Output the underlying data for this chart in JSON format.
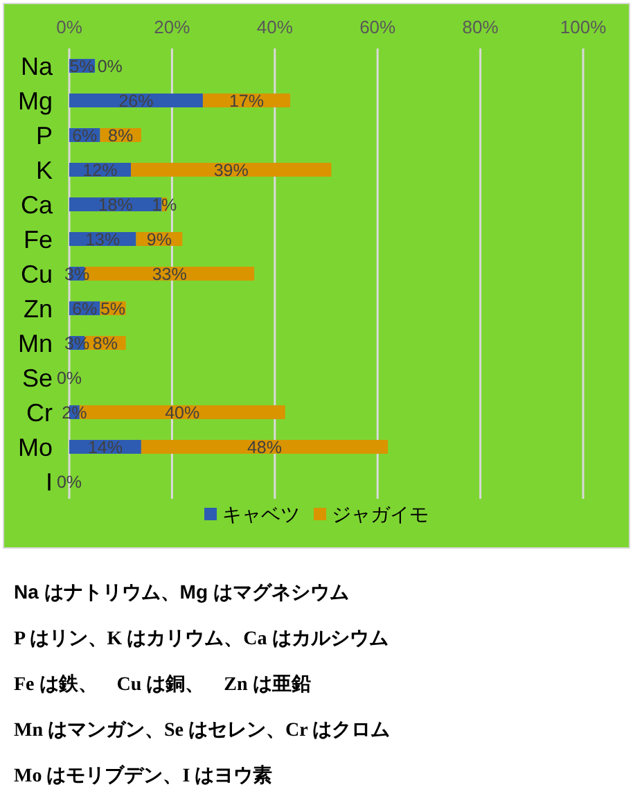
{
  "chart_data": {
    "type": "bar",
    "orientation": "horizontal",
    "stacked": true,
    "categories": [
      "Na",
      "Mg",
      "P",
      "K",
      "Ca",
      "Fe",
      "Cu",
      "Zn",
      "Mn",
      "Se",
      "Cr",
      "Mo",
      "I"
    ],
    "series": [
      {
        "name": "キャベツ",
        "color": "#2e5cb3",
        "values": [
          5,
          26,
          6,
          12,
          18,
          13,
          3,
          6,
          3,
          0,
          2,
          14,
          0
        ],
        "value_labels": [
          "5%",
          "26%",
          "6%",
          "12%",
          "18%",
          "13%",
          "3%",
          "6%",
          "3%",
          "0%",
          "2%",
          "14%",
          "0%"
        ]
      },
      {
        "name": "ジャガイモ",
        "color": "#d99400",
        "values": [
          0,
          17,
          8,
          39,
          1,
          9,
          33,
          5,
          8,
          0,
          40,
          48,
          0
        ],
        "value_labels": [
          "0%",
          "17%",
          "8%",
          "39%",
          "1%",
          "9%",
          "33%",
          "5%",
          "8%",
          null,
          "40%",
          "48%",
          null
        ]
      }
    ],
    "xlim": [
      0,
      100
    ],
    "xticks": [
      {
        "value": 0,
        "label": "0%"
      },
      {
        "value": 20,
        "label": "20%"
      },
      {
        "value": 40,
        "label": "40%"
      },
      {
        "value": 60,
        "label": "60%"
      },
      {
        "value": 80,
        "label": "80%"
      },
      {
        "value": 100,
        "label": "100%"
      }
    ],
    "grid": "x",
    "legend": "bottom",
    "annotations": [
      "Na はナトリウム、Mg はマグネシウム",
      "P はリン、K はカリウム、Ca はカルシウム",
      "Fe は鉄、　Cu は銅、　Zn は亜鉛",
      "Mn はマンガン、Se はセレン、Cr はクロム",
      "Mo はモリブデン、I はヨウ素"
    ]
  }
}
